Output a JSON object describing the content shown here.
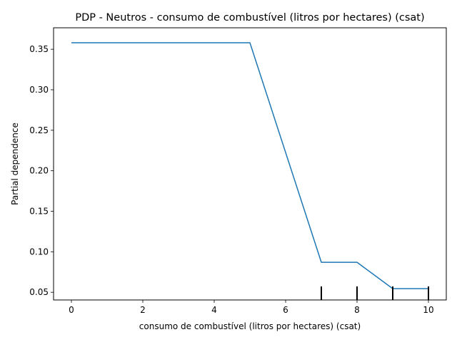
{
  "chart_data": {
    "type": "line",
    "title": "PDP - Neutros - consumo de combustível (litros por hectares) (csat)",
    "xlabel": "consumo de combustível (litros por hectares) (csat)",
    "ylabel": "Partial dependence",
    "xlim": [
      -0.5,
      10.5
    ],
    "ylim": [
      0.0405,
      0.3765
    ],
    "xticks": [
      0,
      2,
      4,
      6,
      8,
      10
    ],
    "xtick_labels": [
      "0",
      "2",
      "4",
      "6",
      "8",
      "10"
    ],
    "yticks": [
      0.05,
      0.1,
      0.15,
      0.2,
      0.25,
      0.3,
      0.35
    ],
    "ytick_labels": [
      "0.05",
      "0.10",
      "0.15",
      "0.20",
      "0.25",
      "0.30",
      "0.35"
    ],
    "grid": false,
    "series": [
      {
        "color": "#1f77b4",
        "x": [
          0,
          5,
          7,
          8,
          9,
          10
        ],
        "y": [
          0.358,
          0.358,
          0.087,
          0.087,
          0.0545,
          0.0545
        ]
      }
    ],
    "deciles": [
      7,
      8,
      9,
      10
    ]
  }
}
